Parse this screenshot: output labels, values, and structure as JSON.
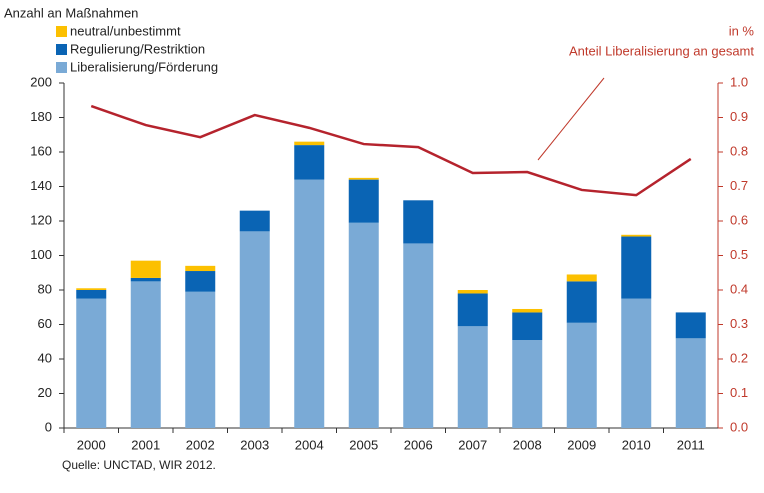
{
  "chart_data": {
    "type": "stacked_bar_line",
    "y_label": "Anzahl an Maßnahmen",
    "y2_label": "in %",
    "annotation": "Anteil Liberalisierung an gesamt",
    "source": "Quelle: UNCTAD, WIR 2012.",
    "categories": [
      "2000",
      "2001",
      "2002",
      "2003",
      "2004",
      "2005",
      "2006",
      "2007",
      "2008",
      "2009",
      "2010",
      "2011"
    ],
    "series": [
      {
        "name": "Liberalisierung/Förderung",
        "color": "#7aaad6",
        "values": [
          75,
          85,
          79,
          114,
          144,
          119,
          107,
          59,
          51,
          61,
          75,
          52
        ]
      },
      {
        "name": "Regulierung/Restriktion",
        "color": "#0a64b4",
        "values": [
          5,
          2,
          12,
          12,
          20,
          25,
          25,
          19,
          16,
          24,
          36,
          15
        ]
      },
      {
        "name": "neutral/unbestimmt",
        "color": "#fcc000",
        "values": [
          1,
          10,
          3,
          0,
          2,
          1,
          0,
          2,
          2,
          4,
          1,
          0
        ]
      },
      {
        "name": "Anteil Liberalisierung an gesamt",
        "color": "#b5232d",
        "axis": "y2",
        "type": "line",
        "values": [
          0.933,
          0.878,
          0.843,
          0.907,
          0.87,
          0.823,
          0.814,
          0.739,
          0.742,
          0.69,
          0.675,
          0.78
        ]
      }
    ],
    "ylim": [
      0,
      200
    ],
    "yticks": [
      0,
      20,
      40,
      60,
      80,
      100,
      120,
      140,
      160,
      180,
      200
    ],
    "y2lim": [
      0,
      1
    ],
    "y2ticks": [
      {
        "value": 0,
        "label": "0.0"
      },
      0.1,
      0.2,
      0.3,
      0.4,
      0.5,
      0.6,
      0.7,
      0.8,
      0.9,
      {
        "value": 1,
        "label": "1.0"
      }
    ],
    "y2_color": "#c0392b"
  }
}
